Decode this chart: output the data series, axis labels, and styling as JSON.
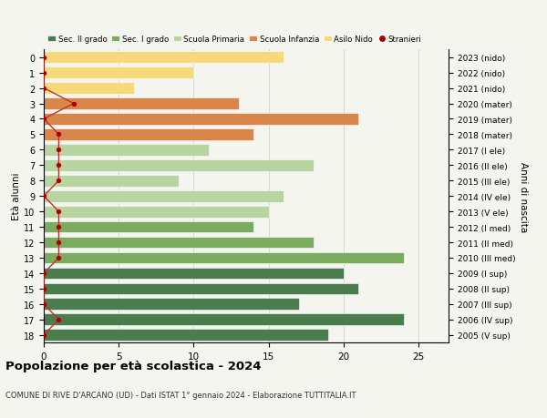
{
  "ages": [
    18,
    17,
    16,
    15,
    14,
    13,
    12,
    11,
    10,
    9,
    8,
    7,
    6,
    5,
    4,
    3,
    2,
    1,
    0
  ],
  "right_labels": [
    "2005 (V sup)",
    "2006 (IV sup)",
    "2007 (III sup)",
    "2008 (II sup)",
    "2009 (I sup)",
    "2010 (III med)",
    "2011 (II med)",
    "2012 (I med)",
    "2013 (V ele)",
    "2014 (IV ele)",
    "2015 (III ele)",
    "2016 (II ele)",
    "2017 (I ele)",
    "2018 (mater)",
    "2019 (mater)",
    "2020 (mater)",
    "2021 (nido)",
    "2022 (nido)",
    "2023 (nido)"
  ],
  "bar_values": [
    19,
    24,
    17,
    21,
    20,
    24,
    18,
    14,
    15,
    16,
    9,
    18,
    11,
    14,
    21,
    13,
    6,
    10,
    16
  ],
  "bar_colors": [
    "#4a7c4e",
    "#4a7c4e",
    "#4a7c4e",
    "#4a7c4e",
    "#4a7c4e",
    "#7aab5e",
    "#7aab5e",
    "#7aab5e",
    "#b8d4a0",
    "#b8d4a0",
    "#b8d4a0",
    "#b8d4a0",
    "#b8d4a0",
    "#d9864a",
    "#d9864a",
    "#d9864a",
    "#f5d97a",
    "#f5d97a",
    "#f5d97a"
  ],
  "stranieri_values": [
    0,
    1,
    0,
    0,
    0,
    1,
    1,
    1,
    1,
    0,
    1,
    1,
    1,
    1,
    0,
    2,
    0,
    0,
    0
  ],
  "stranieri_color": "#aa0000",
  "stranieri_line_color": "#bb3333",
  "ylabel_left": "Età alunni",
  "ylabel_right": "Anni di nascita",
  "xlim": [
    0,
    27
  ],
  "xticks": [
    0,
    5,
    10,
    15,
    20,
    25
  ],
  "title": "Popolazione per età scolastica - 2024",
  "subtitle": "COMUNE DI RIVE D'ARCANO (UD) - Dati ISTAT 1° gennaio 2024 - Elaborazione TUTTITALIA.IT",
  "legend_labels": [
    "Sec. II grado",
    "Sec. I grado",
    "Scuola Primaria",
    "Scuola Infanzia",
    "Asilo Nido",
    "Stranieri"
  ],
  "legend_colors": [
    "#4a7c4e",
    "#7aab5e",
    "#b8d4a0",
    "#d9864a",
    "#f5d97a",
    "#aa0000"
  ],
  "background_color": "#f5f5ef",
  "bar_height": 0.75,
  "grid_color": "#d0d0d0"
}
